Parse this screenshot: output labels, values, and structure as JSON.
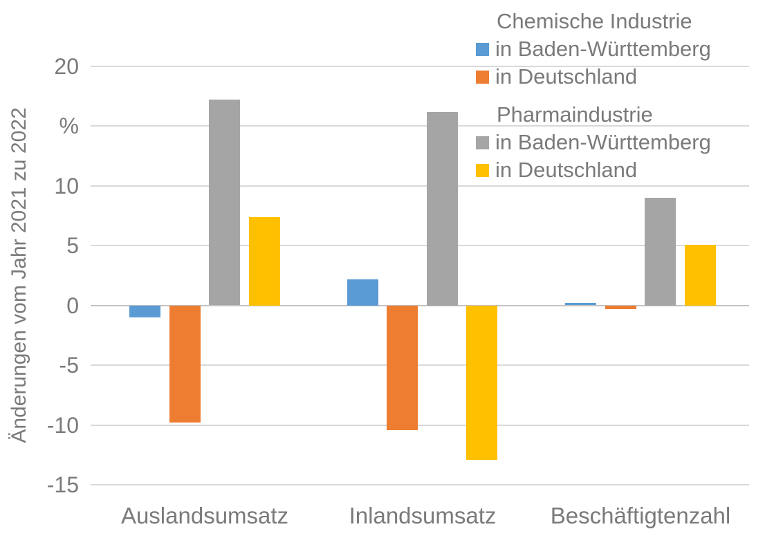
{
  "chart_data": {
    "type": "bar",
    "title": "",
    "ylabel": "Änderungen vom Jahr 2021 zu 2022",
    "unit_label": "%",
    "categories": [
      "Auslandsumsatz",
      "Inlandsumsatz",
      "Beschäftigtenzahl"
    ],
    "series": [
      {
        "name": "Chemische Industrie in Baden-Württemberg",
        "color": "#5B9BD5",
        "values": [
          -1.0,
          2.2,
          0.2
        ]
      },
      {
        "name": "Chemische Industrie in Deutschland",
        "color": "#ED7D31",
        "values": [
          -9.8,
          -10.4,
          -0.3
        ]
      },
      {
        "name": "Pharmaindustrie in Baden-Württemberg",
        "color": "#A5A5A5",
        "values": [
          17.2,
          16.2,
          9.0
        ]
      },
      {
        "name": "Pharmaindustrie in Deutschland",
        "color": "#FFC000",
        "values": [
          7.4,
          -12.9,
          5.1
        ]
      }
    ],
    "ylim": [
      -15,
      20
    ],
    "yticks": [
      20,
      15,
      10,
      5,
      0,
      -5,
      -10,
      -15
    ],
    "ytick_labels": [
      "20",
      "%",
      "10",
      "5",
      "0",
      "-5",
      "-10",
      "-15"
    ],
    "grid": "horizontal",
    "legend": {
      "position": "top-right",
      "groups": [
        {
          "title": "Chemische Industrie",
          "items": [
            {
              "label": "in Baden-Württemberg",
              "color": "#5B9BD5"
            },
            {
              "label": "in Deutschland",
              "color": "#ED7D31"
            }
          ]
        },
        {
          "title": "Pharmaindustrie",
          "items": [
            {
              "label": "in Baden-Württemberg",
              "color": "#A5A5A5"
            },
            {
              "label": "in Deutschland",
              "color": "#FFC000"
            }
          ]
        }
      ]
    },
    "colors": {
      "text": "#7a7a7a",
      "gridline": "#d9d9d9",
      "zero_line": "#c3c3c3",
      "background": "#ffffff"
    }
  }
}
